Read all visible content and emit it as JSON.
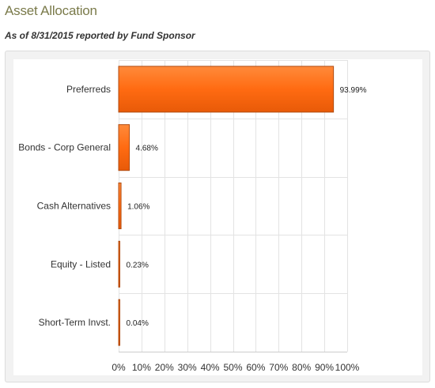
{
  "header": {
    "title": "Asset Allocation",
    "subtitle": "As of 8/31/2015 reported by Fund Sponsor"
  },
  "colors": {
    "bar_fill": "#ff6b12",
    "bar_stroke": "#b04b10",
    "title": "#7a7a4a",
    "grid": "#e3e3e3"
  },
  "chart_data": {
    "type": "bar",
    "orientation": "horizontal",
    "categories": [
      "Preferreds",
      "Bonds - Corp General",
      "Cash Alternatives",
      "Equity - Listed",
      "Short-Term Invst."
    ],
    "values": [
      93.99,
      4.68,
      1.06,
      0.23,
      0.04
    ],
    "data_labels": [
      "93.99%",
      "4.68%",
      "1.06%",
      "0.23%",
      "0.04%"
    ],
    "x_ticks": [
      "0%",
      "10%",
      "20%",
      "30%",
      "40%",
      "50%",
      "60%",
      "70%",
      "80%",
      "90%",
      "100%"
    ],
    "xlim": [
      0,
      100
    ],
    "title": "",
    "xlabel": "",
    "ylabel": "",
    "grid": true
  }
}
